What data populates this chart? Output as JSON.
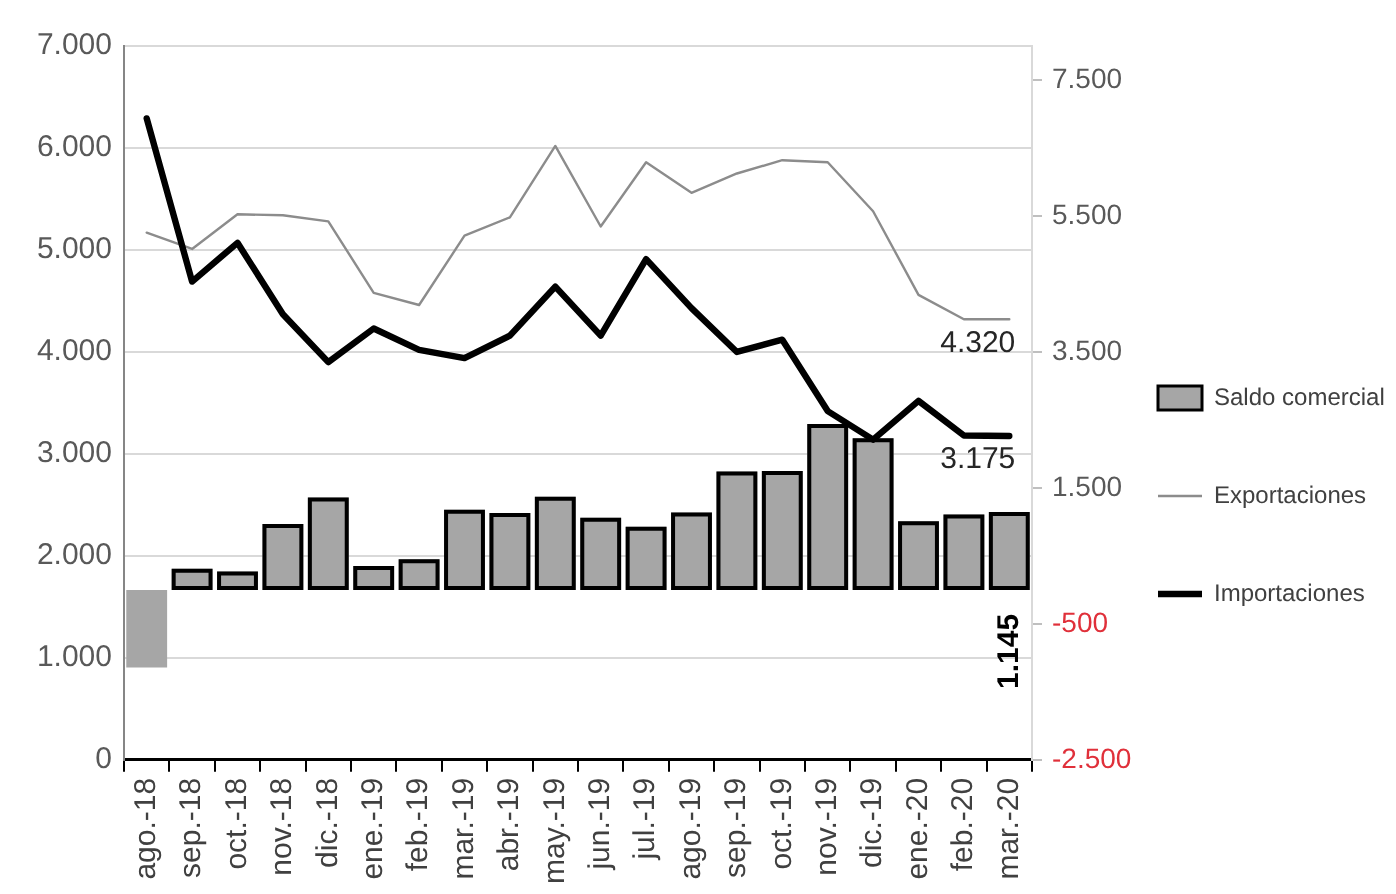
{
  "chart_data": {
    "type": "bar",
    "categories": [
      "ago.-18",
      "sep.-18",
      "oct.-18",
      "nov.-18",
      "dic.-18",
      "ene.-19",
      "feb.-19",
      "mar.-19",
      "abr.-19",
      "may.-19",
      "jun.-19",
      "jul.-19",
      "ago.-19",
      "sep.-19",
      "oct.-19",
      "nov.-19",
      "dic.-19",
      "ene.-20",
      "feb.-20",
      "mar.-20"
    ],
    "series": [
      {
        "name": "Saldo comercial",
        "axis": "y2",
        "color": "#a6a6a6",
        "values": [
          -1140,
          310,
          270,
          970,
          1360,
          350,
          450,
          1180,
          1130,
          1370,
          1060,
          930,
          1140,
          1740,
          1750,
          2440,
          2230,
          1010,
          1110,
          1145
        ],
        "value_labels": [
          null,
          null,
          null,
          null,
          null,
          null,
          null,
          null,
          null,
          null,
          null,
          null,
          null,
          null,
          null,
          null,
          null,
          null,
          null,
          "1.145"
        ]
      },
      {
        "name": "Exportaciones",
        "type": "line",
        "color": "#8c8c8c",
        "values": [
          5170,
          5010,
          5350,
          5340,
          5280,
          4580,
          4460,
          5140,
          5320,
          6020,
          5230,
          5860,
          5560,
          5750,
          5880,
          5860,
          5380,
          4560,
          4320,
          4320
        ],
        "value_labels": [
          null,
          null,
          null,
          null,
          null,
          null,
          null,
          null,
          null,
          null,
          null,
          null,
          null,
          null,
          null,
          null,
          null,
          null,
          null,
          "4.320"
        ]
      },
      {
        "name": "Importaciones",
        "type": "line",
        "color": "#000000",
        "values": [
          6290,
          4690,
          5070,
          4370,
          3900,
          4230,
          4020,
          3940,
          4160,
          4640,
          4160,
          4910,
          4430,
          4000,
          4120,
          3420,
          3140,
          3520,
          3180,
          3175
        ],
        "value_labels": [
          null,
          null,
          null,
          null,
          null,
          null,
          null,
          null,
          null,
          null,
          null,
          null,
          null,
          null,
          null,
          null,
          null,
          null,
          null,
          "3.175"
        ]
      }
    ],
    "ylim": [
      0,
      7000
    ],
    "yticks": [
      0,
      {
        "value": 1000,
        "label": "1.000"
      },
      {
        "value": 2000,
        "label": "2.000"
      },
      {
        "value": 3000,
        "label": "3.000"
      },
      {
        "value": 4000,
        "label": "4.000"
      },
      {
        "value": 5000,
        "label": "5.000"
      },
      {
        "value": 6000,
        "label": "6.000"
      },
      {
        "value": 7000,
        "label": "7.000"
      }
    ],
    "y2lim": [
      -2500,
      8000
    ],
    "y2ticks": [
      {
        "value": -2500,
        "label": "-2.500"
      },
      -500,
      {
        "value": 1500,
        "label": "1.500"
      },
      {
        "value": 3500,
        "label": "3.500"
      },
      {
        "value": 5500,
        "label": "5.500"
      },
      {
        "value": 7500,
        "label": "7.500"
      }
    ],
    "grid": "y",
    "legend": "right",
    "marker": "none"
  }
}
